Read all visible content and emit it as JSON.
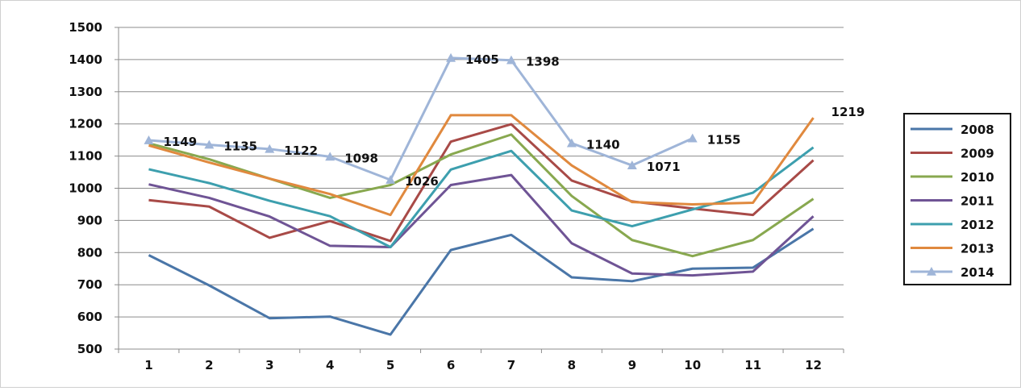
{
  "chart_data": {
    "type": "line",
    "x": [
      1,
      2,
      3,
      4,
      5,
      6,
      7,
      8,
      9,
      10,
      11,
      12
    ],
    "ylim": [
      500,
      1500
    ],
    "yticks": [
      500,
      600,
      700,
      800,
      900,
      1000,
      1100,
      1200,
      1300,
      1400,
      1500
    ],
    "grid": true,
    "legend_position": "right",
    "series": [
      {
        "name": "2008",
        "color": "#4a76a8",
        "values": [
          792,
          698,
          596,
          601,
          545,
          808,
          855,
          723,
          711,
          750,
          753,
          874
        ]
      },
      {
        "name": "2009",
        "color": "#a84a47",
        "values": [
          963,
          943,
          846,
          898,
          836,
          1145,
          1199,
          1024,
          959,
          937,
          917,
          1087
        ]
      },
      {
        "name": "2010",
        "color": "#88a84f",
        "values": [
          1140,
          1090,
          1030,
          970,
          1010,
          1105,
          1167,
          976,
          839,
          789,
          839,
          967
        ]
      },
      {
        "name": "2011",
        "color": "#6f5495",
        "values": [
          1012,
          970,
          912,
          821,
          817,
          1010,
          1041,
          829,
          735,
          729,
          741,
          913
        ]
      },
      {
        "name": "2012",
        "color": "#3d9fae",
        "values": [
          1059,
          1016,
          961,
          913,
          817,
          1058,
          1116,
          931,
          882,
          934,
          986,
          1127
        ]
      },
      {
        "name": "2013",
        "color": "#e0893e",
        "values": [
          1133,
          1080,
          1030,
          982,
          917,
          1227,
          1227,
          1071,
          957,
          950,
          955,
          1219
        ]
      },
      {
        "name": "2014",
        "color": "#9fb5d8",
        "marker": "triangle",
        "values": [
          1149,
          1135,
          1122,
          1098,
          1026,
          1405,
          1398,
          1140,
          1071,
          1155,
          null,
          null
        ],
        "data_labels": [
          "1149",
          "1135",
          "1122",
          "1098",
          "1026",
          "1405",
          "1398",
          "1140",
          "1071",
          "1155"
        ]
      }
    ],
    "extra_labels": [
      {
        "text": "1219",
        "series": "2013",
        "index": 11
      }
    ]
  }
}
